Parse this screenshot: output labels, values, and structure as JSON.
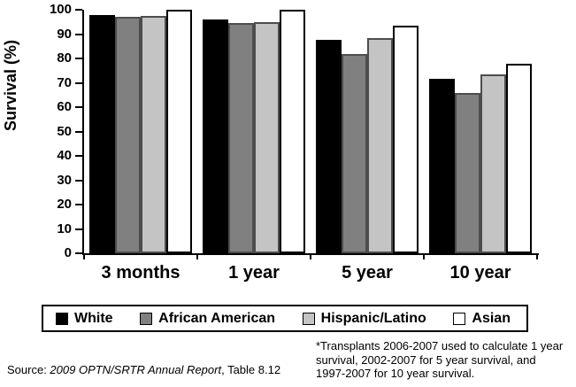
{
  "chart_data": {
    "type": "bar",
    "categories": [
      "3 months",
      "1 year",
      "5 year",
      "10 year"
    ],
    "series": [
      {
        "name": "White",
        "color": "#000000",
        "edge": "#000000",
        "values": [
          98,
          96,
          87.5,
          71.5
        ]
      },
      {
        "name": "African American",
        "color": "#808080",
        "edge": "#4d4d4d",
        "values": [
          97,
          94.5,
          82,
          66
        ]
      },
      {
        "name": "Hispanic/Latino",
        "color": "#c4c4c4",
        "edge": "#4d4d4d",
        "values": [
          97.5,
          95,
          88.5,
          73.5
        ]
      },
      {
        "name": "Asian",
        "color": "#ffffff",
        "edge": "#000000",
        "values": [
          100,
          100,
          93.5,
          78
        ]
      }
    ],
    "title": "",
    "xlabel": "",
    "ylabel": "Survival (%)",
    "ylim": [
      0,
      100
    ],
    "yticks": [
      0,
      10,
      20,
      30,
      40,
      50,
      60,
      70,
      80,
      90,
      100
    ],
    "grid": false,
    "legend_position": "bottom-box"
  },
  "source": {
    "prefix": "Source: ",
    "italic": "2009 OPTN/SRTR Annual Report",
    "suffix": ", Table 8.12"
  },
  "footnote": {
    "lines": [
      "*Transplants 2006-2007 used to calculate 1 year",
      "survival, 2002-2007 for 5 year survival, and",
      "1997-2007 for 10 year survival."
    ]
  }
}
